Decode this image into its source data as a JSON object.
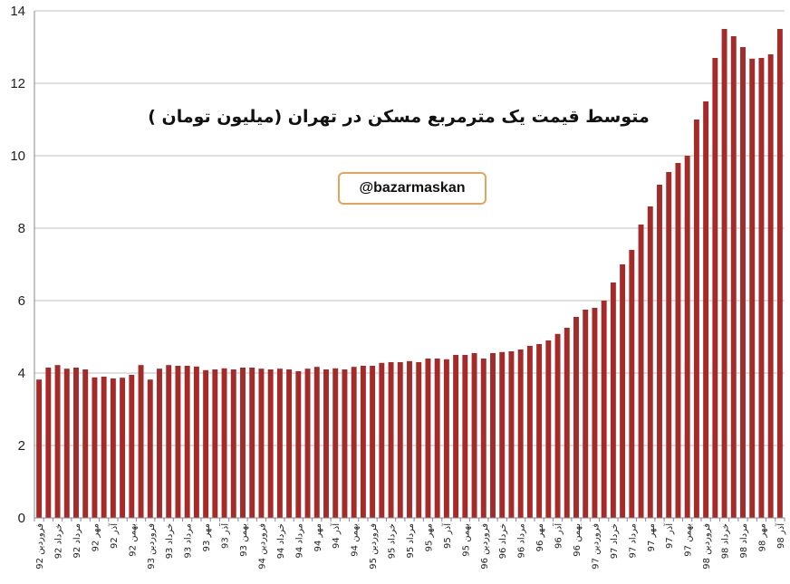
{
  "chart_data": {
    "type": "bar",
    "title": "متوسط قیمت یک مترمربع مسکن در تهران (میلیون تومان )",
    "watermark": "@bazarmaskan",
    "xlabel": "",
    "ylabel": "",
    "ylim": [
      0,
      14
    ],
    "yticks": [
      0,
      2,
      4,
      6,
      8,
      10,
      12,
      14
    ],
    "grid": true,
    "legend": "none",
    "bar_color": "#a52a2a",
    "grid_color": "#bfbfbf",
    "categories": [
      "فروردین 92",
      "",
      "خرداد 92",
      "",
      "مرداد 92",
      "",
      "مهر 92",
      "",
      "آذر 92",
      "",
      "بهمن 92",
      "",
      "فروردین 93",
      "",
      "خرداد 93",
      "",
      "مرداد 93",
      "",
      "مهر 93",
      "",
      "آذر 93",
      "",
      "بهمن 93",
      "",
      "فروردین 94",
      "",
      "خرداد 94",
      "",
      "مرداد 94",
      "",
      "مهر 94",
      "",
      "آذر 94",
      "",
      "بهمن 94",
      "",
      "فروردین 95",
      "",
      "خرداد 95",
      "",
      "مرداد 95",
      "",
      "مهر 95",
      "",
      "آذر 95",
      "",
      "بهمن 95",
      "",
      "فروردین 96",
      "",
      "خرداد 96",
      "",
      "مرداد 96",
      "",
      "مهر 96",
      "",
      "آذر 96",
      "",
      "بهمن 96",
      "",
      "فروردین 97",
      "",
      "خرداد 97",
      "",
      "مرداد 97",
      "",
      "مهر 97",
      "",
      "آذر 97",
      "",
      "بهمن 97",
      "",
      "فروردین 98",
      "",
      "خرداد 98",
      "",
      "مرداد 98",
      "",
      "مهر 98",
      "",
      "آذر 98"
    ],
    "values": [
      3.82,
      4.15,
      4.22,
      4.12,
      4.15,
      4.1,
      3.88,
      3.9,
      3.85,
      3.87,
      3.95,
      4.22,
      3.82,
      4.12,
      4.22,
      4.2,
      4.2,
      4.18,
      4.08,
      4.1,
      4.13,
      4.1,
      4.15,
      4.15,
      4.12,
      4.1,
      4.12,
      4.1,
      4.05,
      4.12,
      4.17,
      4.1,
      4.13,
      4.1,
      4.17,
      4.2,
      4.2,
      4.28,
      4.3,
      4.3,
      4.33,
      4.3,
      4.4,
      4.4,
      4.38,
      4.5,
      4.5,
      4.55,
      4.4,
      4.55,
      4.58,
      4.6,
      4.65,
      4.75,
      4.8,
      4.9,
      5.08,
      5.25,
      5.55,
      5.75,
      5.8,
      6.0,
      6.5,
      7.0,
      7.4,
      8.1,
      8.6,
      9.2,
      9.55,
      9.8,
      10.0,
      11.0,
      11.5,
      12.7,
      13.5,
      13.3,
      13.0,
      12.68,
      12.7,
      12.8,
      13.5
    ]
  }
}
